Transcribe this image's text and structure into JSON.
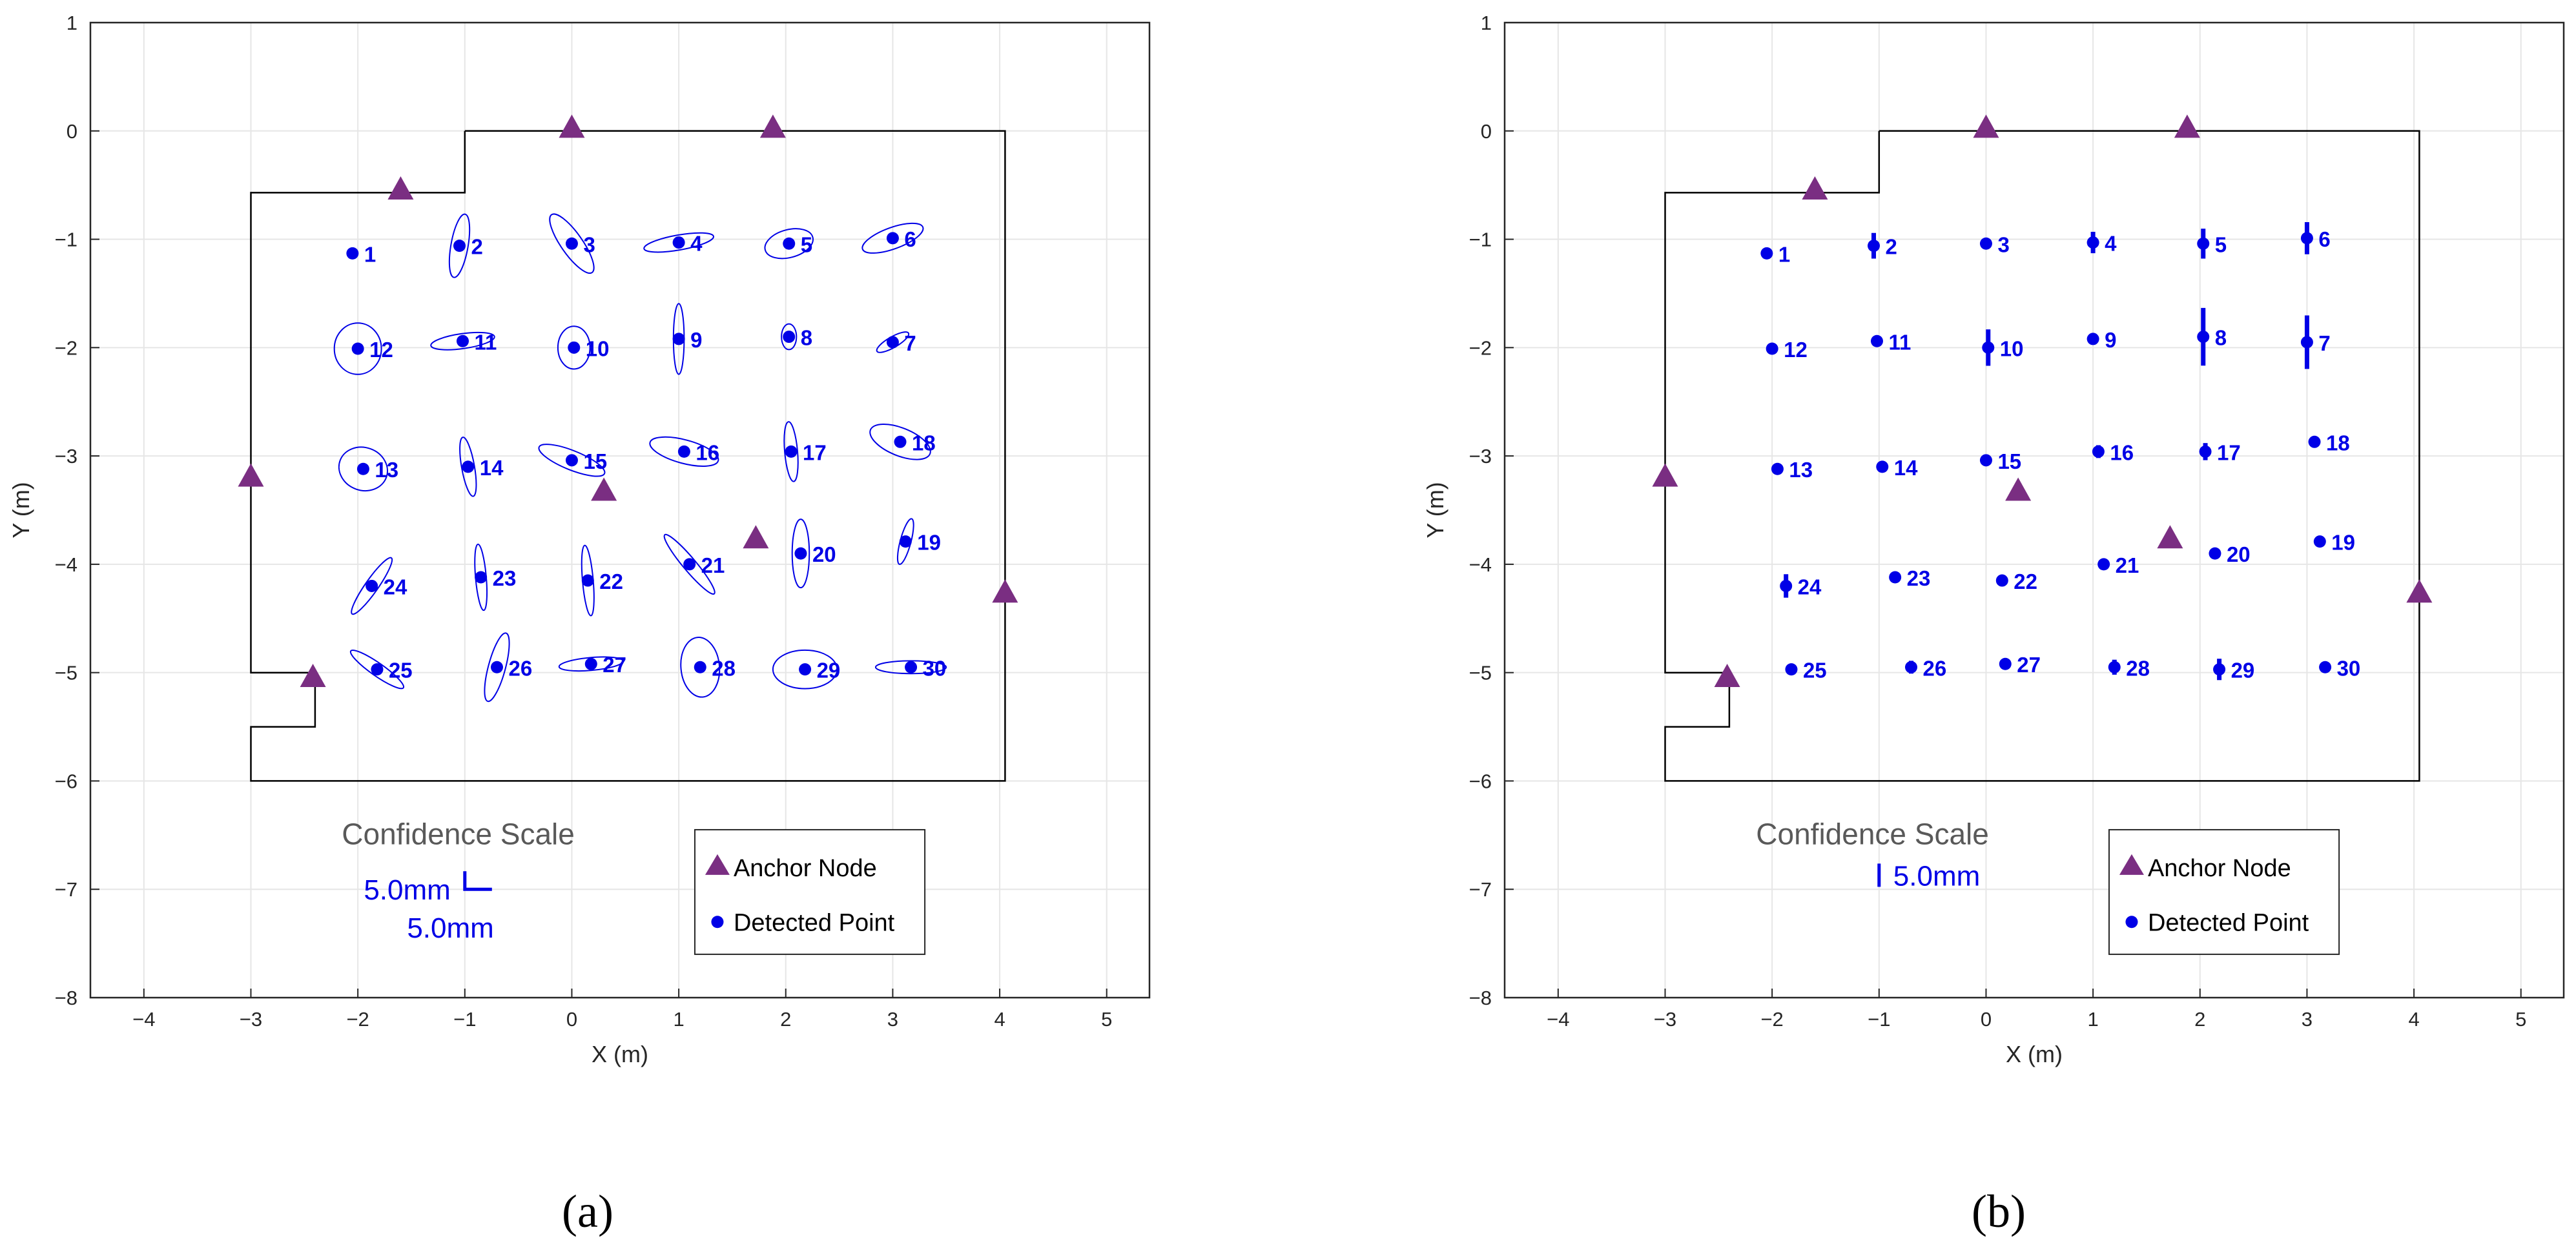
{
  "colors": {
    "detected": "#0000e6",
    "anchor": "#7a2e82",
    "boundary": "#000000",
    "grid": "#e6e6e6",
    "axis": "#262626"
  },
  "chart_data": [
    {
      "type": "scatter",
      "panel_label": "(a)",
      "xlabel": "X (m)",
      "ylabel": "Y (m)",
      "xlim": [
        -4.5,
        5.4
      ],
      "ylim": [
        -8,
        1
      ],
      "xticks": [
        -4,
        -3,
        -2,
        -1,
        0,
        1,
        2,
        3,
        4,
        5
      ],
      "yticks": [
        1,
        0,
        -1,
        -2,
        -3,
        -4,
        -5,
        -6,
        -7,
        -8
      ],
      "grid": true,
      "uncertainty_style": "ellipse",
      "boundary": [
        [
          -1.0,
          0
        ],
        [
          4.05,
          0
        ],
        [
          4.05,
          -6
        ],
        [
          -3.0,
          -6
        ],
        [
          -3.0,
          -5.5
        ],
        [
          -2.4,
          -5.5
        ],
        [
          -2.4,
          -5.0
        ],
        [
          -3.0,
          -5.0
        ],
        [
          -3.0,
          -0.57
        ],
        [
          -1.0,
          -0.57
        ],
        [
          -1.0,
          0
        ]
      ],
      "anchors": [
        [
          -1.6,
          -0.55
        ],
        [
          0.0,
          0.02
        ],
        [
          1.88,
          0.02
        ],
        [
          -3.0,
          -3.2
        ],
        [
          0.3,
          -3.33
        ],
        [
          1.72,
          -3.77
        ],
        [
          4.05,
          -4.27
        ],
        [
          -2.42,
          -5.05
        ]
      ],
      "legend": {
        "position": "bottom-center",
        "entries": [
          "Anchor Node",
          "Detected Point"
        ]
      },
      "scale": {
        "title": "Confidence Scale",
        "labels": [
          "5.0mm",
          "5.0mm"
        ]
      },
      "points": [
        {
          "id": "1",
          "x": -2.05,
          "y": -1.13,
          "a": 0,
          "b": 0,
          "ang": 0
        },
        {
          "id": "2",
          "x": -1.05,
          "y": -1.06,
          "a": 0.08,
          "b": 0.3,
          "ang": -10
        },
        {
          "id": "3",
          "x": 0.0,
          "y": -1.04,
          "a": 0.1,
          "b": 0.33,
          "ang": 35
        },
        {
          "id": "4",
          "x": 1.0,
          "y": -1.03,
          "a": 0.33,
          "b": 0.07,
          "ang": 10
        },
        {
          "id": "5",
          "x": 2.03,
          "y": -1.04,
          "a": 0.23,
          "b": 0.13,
          "ang": 15
        },
        {
          "id": "6",
          "x": 3.0,
          "y": -0.99,
          "a": 0.3,
          "b": 0.1,
          "ang": 20
        },
        {
          "id": "7",
          "x": 3.0,
          "y": -1.95,
          "a": 0.17,
          "b": 0.05,
          "ang": 30
        },
        {
          "id": "8",
          "x": 2.03,
          "y": -1.9,
          "a": 0.07,
          "b": 0.12,
          "ang": 0
        },
        {
          "id": "9",
          "x": 1.0,
          "y": -1.92,
          "a": 0.05,
          "b": 0.33,
          "ang": 0
        },
        {
          "id": "10",
          "x": 0.02,
          "y": -2.0,
          "a": 0.15,
          "b": 0.2,
          "ang": 0
        },
        {
          "id": "11",
          "x": -1.02,
          "y": -1.94,
          "a": 0.3,
          "b": 0.07,
          "ang": 8
        },
        {
          "id": "12",
          "x": -2.0,
          "y": -2.01,
          "a": 0.22,
          "b": 0.24,
          "ang": 0
        },
        {
          "id": "13",
          "x": -1.95,
          "y": -3.12,
          "a": 0.23,
          "b": 0.2,
          "ang": -20
        },
        {
          "id": "14",
          "x": -0.97,
          "y": -3.1,
          "a": 0.06,
          "b": 0.28,
          "ang": 10
        },
        {
          "id": "15",
          "x": 0.0,
          "y": -3.04,
          "a": 0.33,
          "b": 0.09,
          "ang": -22
        },
        {
          "id": "16",
          "x": 1.05,
          "y": -2.96,
          "a": 0.33,
          "b": 0.11,
          "ang": -15
        },
        {
          "id": "17",
          "x": 2.05,
          "y": -2.96,
          "a": 0.06,
          "b": 0.28,
          "ang": 5
        },
        {
          "id": "18",
          "x": 3.07,
          "y": -2.87,
          "a": 0.3,
          "b": 0.13,
          "ang": -22
        },
        {
          "id": "19",
          "x": 3.12,
          "y": -3.79,
          "a": 0.05,
          "b": 0.22,
          "ang": -15
        },
        {
          "id": "20",
          "x": 2.14,
          "y": -3.9,
          "a": 0.08,
          "b": 0.32,
          "ang": 0
        },
        {
          "id": "21",
          "x": 1.1,
          "y": -4.0,
          "a": 0.06,
          "b": 0.36,
          "ang": 40
        },
        {
          "id": "22",
          "x": 0.15,
          "y": -4.15,
          "a": 0.05,
          "b": 0.33,
          "ang": 5
        },
        {
          "id": "23",
          "x": -0.85,
          "y": -4.12,
          "a": 0.05,
          "b": 0.31,
          "ang": 5
        },
        {
          "id": "24",
          "x": -1.87,
          "y": -4.2,
          "a": 0.06,
          "b": 0.32,
          "ang": -35
        },
        {
          "id": "25",
          "x": -1.82,
          "y": -4.97,
          "a": 0.06,
          "b": 0.3,
          "ang": 55
        },
        {
          "id": "26",
          "x": -0.7,
          "y": -4.95,
          "a": 0.08,
          "b": 0.33,
          "ang": -15
        },
        {
          "id": "27",
          "x": 0.18,
          "y": -4.92,
          "a": 0.3,
          "b": 0.06,
          "ang": 5
        },
        {
          "id": "28",
          "x": 1.2,
          "y": -4.95,
          "a": 0.18,
          "b": 0.28,
          "ang": 5
        },
        {
          "id": "29",
          "x": 2.18,
          "y": -4.97,
          "a": 0.3,
          "b": 0.18,
          "ang": 0
        },
        {
          "id": "30",
          "x": 3.17,
          "y": -4.95,
          "a": 0.33,
          "b": 0.06,
          "ang": 0
        }
      ]
    },
    {
      "type": "scatter",
      "panel_label": "(b)",
      "xlabel": "X (m)",
      "ylabel": "Y (m)",
      "xlim": [
        -4.5,
        5.4
      ],
      "ylim": [
        -8,
        1
      ],
      "xticks": [
        -4,
        -3,
        -2,
        -1,
        0,
        1,
        2,
        3,
        4,
        5
      ],
      "yticks": [
        1,
        0,
        -1,
        -2,
        -3,
        -4,
        -5,
        -6,
        -7,
        -8
      ],
      "grid": true,
      "uncertainty_style": "vertical-bar",
      "boundary": [
        [
          -1.0,
          0
        ],
        [
          4.05,
          0
        ],
        [
          4.05,
          -6
        ],
        [
          -3.0,
          -6
        ],
        [
          -3.0,
          -5.5
        ],
        [
          -2.4,
          -5.5
        ],
        [
          -2.4,
          -5.0
        ],
        [
          -3.0,
          -5.0
        ],
        [
          -3.0,
          -0.57
        ],
        [
          -1.0,
          -0.57
        ],
        [
          -1.0,
          0
        ]
      ],
      "anchors": [
        [
          -1.6,
          -0.55
        ],
        [
          0.0,
          0.02
        ],
        [
          1.88,
          0.02
        ],
        [
          -3.0,
          -3.2
        ],
        [
          0.3,
          -3.33
        ],
        [
          1.72,
          -3.77
        ],
        [
          4.05,
          -4.27
        ],
        [
          -2.42,
          -5.05
        ]
      ],
      "legend": {
        "position": "bottom-center",
        "entries": [
          "Anchor Node",
          "Detected Point"
        ]
      },
      "scale": {
        "title": "Confidence Scale",
        "labels": [
          "5.0mm"
        ]
      },
      "points": [
        {
          "id": "1",
          "x": -2.05,
          "y": -1.13,
          "h": 0
        },
        {
          "id": "2",
          "x": -1.05,
          "y": -1.06,
          "h": 0.12
        },
        {
          "id": "3",
          "x": 0.0,
          "y": -1.04,
          "h": 0
        },
        {
          "id": "4",
          "x": 1.0,
          "y": -1.03,
          "h": 0.1
        },
        {
          "id": "5",
          "x": 2.03,
          "y": -1.04,
          "h": 0.14
        },
        {
          "id": "6",
          "x": 3.0,
          "y": -0.99,
          "h": 0.15
        },
        {
          "id": "7",
          "x": 3.0,
          "y": -1.95,
          "h": 0.25
        },
        {
          "id": "8",
          "x": 2.03,
          "y": -1.9,
          "h": 0.27
        },
        {
          "id": "9",
          "x": 1.0,
          "y": -1.92,
          "h": 0
        },
        {
          "id": "10",
          "x": 0.02,
          "y": -2.0,
          "h": 0.17
        },
        {
          "id": "11",
          "x": -1.02,
          "y": -1.94,
          "h": 0
        },
        {
          "id": "12",
          "x": -2.0,
          "y": -2.01,
          "h": 0
        },
        {
          "id": "13",
          "x": -1.95,
          "y": -3.12,
          "h": 0
        },
        {
          "id": "14",
          "x": -0.97,
          "y": -3.1,
          "h": 0
        },
        {
          "id": "15",
          "x": 0.0,
          "y": -3.04,
          "h": 0
        },
        {
          "id": "16",
          "x": 1.05,
          "y": -2.96,
          "h": 0.06
        },
        {
          "id": "17",
          "x": 2.05,
          "y": -2.96,
          "h": 0.08
        },
        {
          "id": "18",
          "x": 3.07,
          "y": -2.87,
          "h": 0
        },
        {
          "id": "19",
          "x": 3.12,
          "y": -3.79,
          "h": 0
        },
        {
          "id": "20",
          "x": 2.14,
          "y": -3.9,
          "h": 0
        },
        {
          "id": "21",
          "x": 1.1,
          "y": -4.0,
          "h": 0
        },
        {
          "id": "22",
          "x": 0.15,
          "y": -4.15,
          "h": 0
        },
        {
          "id": "23",
          "x": -0.85,
          "y": -4.12,
          "h": 0
        },
        {
          "id": "24",
          "x": -1.87,
          "y": -4.2,
          "h": 0.11
        },
        {
          "id": "25",
          "x": -1.82,
          "y": -4.97,
          "h": 0
        },
        {
          "id": "26",
          "x": -0.7,
          "y": -4.95,
          "h": 0.06
        },
        {
          "id": "27",
          "x": 0.18,
          "y": -4.92,
          "h": 0
        },
        {
          "id": "28",
          "x": 1.2,
          "y": -4.95,
          "h": 0.07
        },
        {
          "id": "29",
          "x": 2.18,
          "y": -4.97,
          "h": 0.1
        },
        {
          "id": "30",
          "x": 3.17,
          "y": -4.95,
          "h": 0
        }
      ]
    }
  ]
}
